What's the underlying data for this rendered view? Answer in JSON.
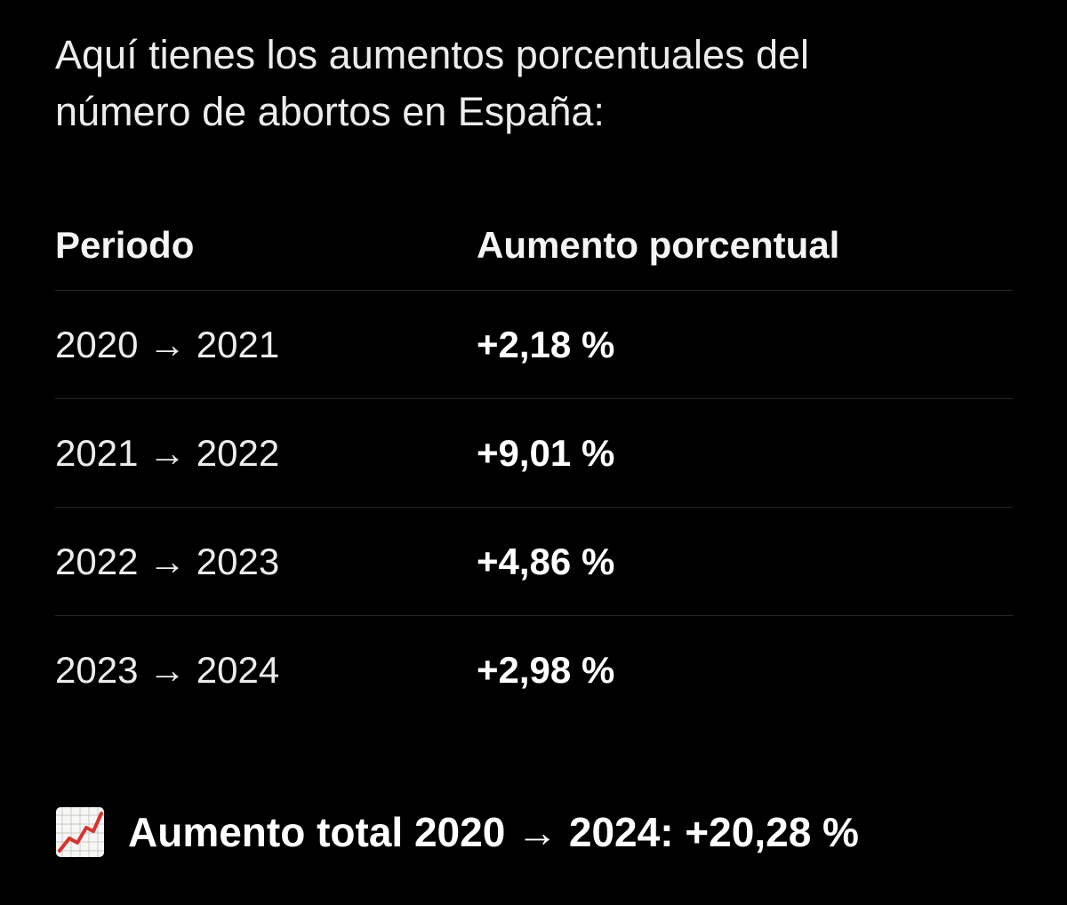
{
  "intro": {
    "line1": "Aquí tienes los aumentos porcentuales del",
    "line2": "número de abortos en España:"
  },
  "table": {
    "headers": {
      "period": "Periodo",
      "increase": "Aumento porcentual"
    },
    "rows": [
      {
        "period": "2020 → 2021",
        "increase": "+2,18 %"
      },
      {
        "period": "2021 → 2022",
        "increase": "+9,01 %"
      },
      {
        "period": "2022 → 2023",
        "increase": "+4,86 %"
      },
      {
        "period": "2023 → 2024",
        "increase": "+2,98 %"
      }
    ]
  },
  "total": {
    "icon": "chart-increasing-icon",
    "text": "Aumento total 2020 → 2024: +20,28 %"
  },
  "colors": {
    "background": "#000000",
    "text": "#ffffff",
    "divider": "#262626",
    "icon_line": "#d9332b"
  }
}
